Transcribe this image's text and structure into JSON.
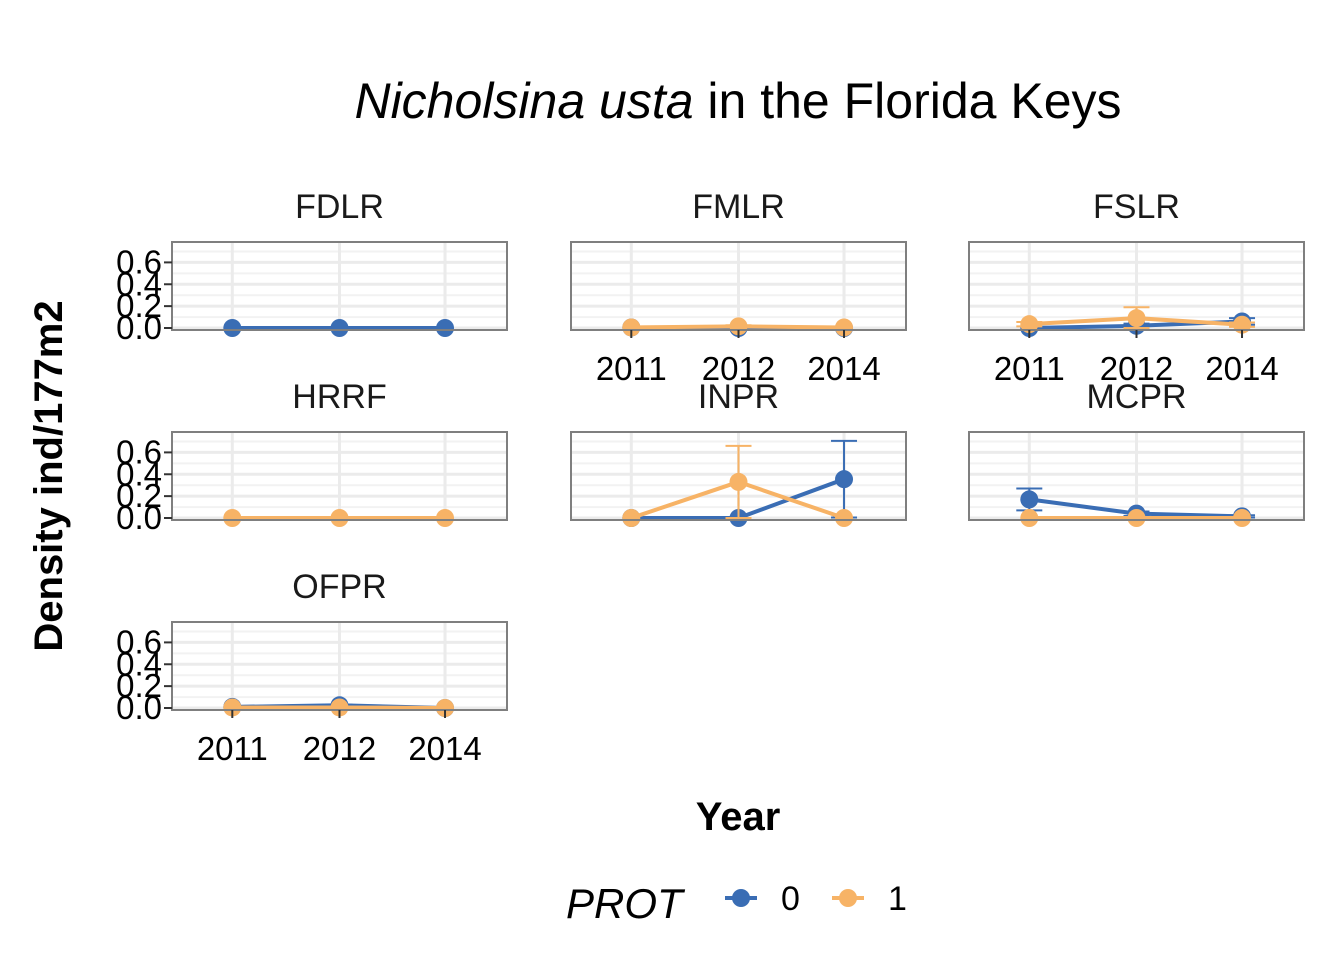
{
  "chart_data": {
    "type": "line",
    "title_italic": "Nicholsina usta",
    "title_rest": " in the Florida Keys",
    "xlabel": "Year",
    "ylabel": "Density ind/177m2",
    "x": [
      "2011",
      "2012",
      "2014"
    ],
    "yticks": [
      "0.0",
      "0.2",
      "0.4",
      "0.6"
    ],
    "ylim": [
      0,
      0.75
    ],
    "grid": true,
    "legend": {
      "title": "PROT",
      "position": "bottom",
      "entries": [
        {
          "label": "0",
          "color": "#3a6db4"
        },
        {
          "label": "1",
          "color": "#f7b366"
        }
      ]
    },
    "panels": [
      {
        "name": "FDLR",
        "series": [
          {
            "prot": "0",
            "values": [
              0.0,
              0.0,
              0.0
            ],
            "err": [
              0.0,
              0.0,
              0.0
            ]
          },
          {
            "prot": "1",
            "values": [
              null,
              null,
              null
            ],
            "err": [
              null,
              null,
              null
            ]
          }
        ]
      },
      {
        "name": "FMLR",
        "series": [
          {
            "prot": "0",
            "values": [
              0.005,
              0.0,
              0.0
            ],
            "err": [
              0.0,
              0.0,
              0.0
            ]
          },
          {
            "prot": "1",
            "values": [
              0.005,
              0.015,
              0.005
            ],
            "err": [
              0.0,
              0.01,
              0.0
            ]
          }
        ]
      },
      {
        "name": "FSLR",
        "series": [
          {
            "prot": "0",
            "values": [
              0.0,
              0.02,
              0.06
            ],
            "err": [
              0.0,
              0.02,
              0.03
            ]
          },
          {
            "prot": "1",
            "values": [
              0.035,
              0.09,
              0.03
            ],
            "err": [
              0.02,
              0.1,
              0.02
            ]
          }
        ]
      },
      {
        "name": "HRRF",
        "series": [
          {
            "prot": "0",
            "values": [
              null,
              null,
              null
            ],
            "err": [
              null,
              null,
              null
            ]
          },
          {
            "prot": "1",
            "values": [
              0.0,
              0.0,
              0.0
            ],
            "err": [
              0.0,
              0.0,
              0.0
            ]
          }
        ]
      },
      {
        "name": "INPR",
        "series": [
          {
            "prot": "0",
            "values": [
              0.0,
              0.0,
              0.355
            ],
            "err": [
              0.0,
              0.0,
              0.35
            ]
          },
          {
            "prot": "1",
            "values": [
              0.0,
              0.33,
              0.0
            ],
            "err": [
              0.0,
              0.33,
              0.0
            ]
          }
        ]
      },
      {
        "name": "MCPR",
        "series": [
          {
            "prot": "0",
            "values": [
              0.17,
              0.04,
              0.015
            ],
            "err": [
              0.1,
              0.02,
              0.01
            ]
          },
          {
            "prot": "1",
            "values": [
              0.0,
              0.0,
              0.0
            ],
            "err": [
              0.0,
              0.0,
              0.0
            ]
          }
        ]
      },
      {
        "name": "OFPR",
        "series": [
          {
            "prot": "0",
            "values": [
              0.01,
              0.025,
              0.0
            ],
            "err": [
              0.0,
              0.005,
              0.0
            ]
          },
          {
            "prot": "1",
            "values": [
              0.005,
              0.005,
              0.0
            ],
            "err": [
              0.0,
              0.0,
              0.0
            ]
          }
        ]
      }
    ]
  }
}
